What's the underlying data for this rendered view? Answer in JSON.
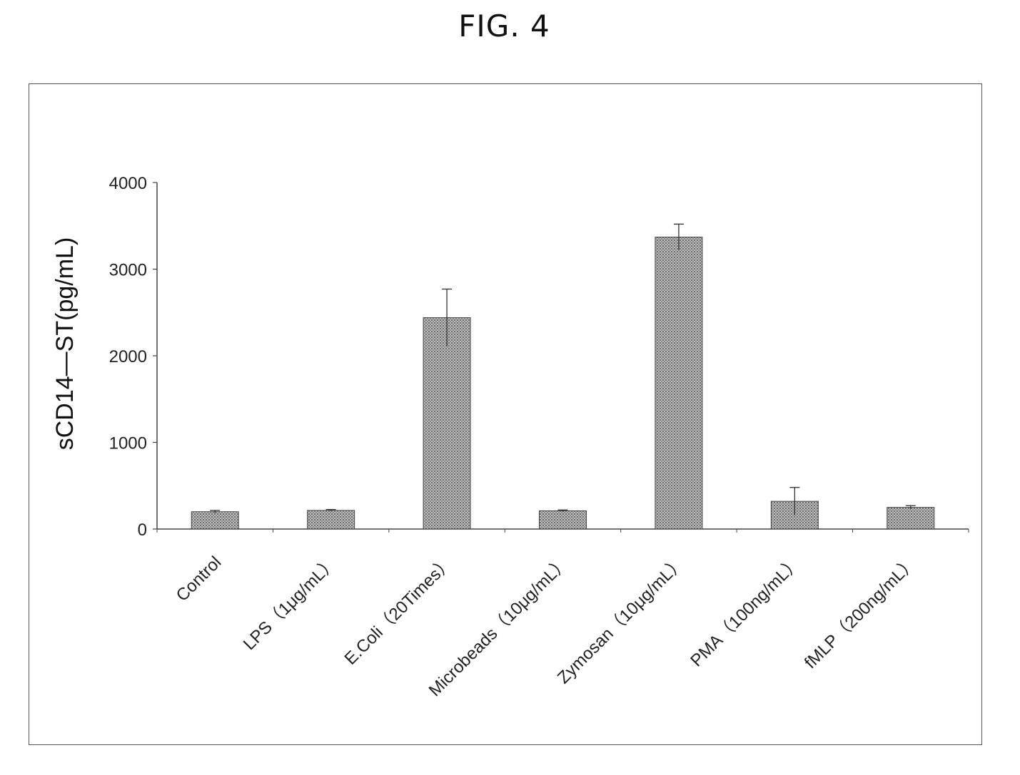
{
  "figure": {
    "title": "FIG. 4"
  },
  "chart_data": {
    "type": "bar",
    "title": "",
    "xlabel": "",
    "ylabel": "sCD14—ST(pg/mL)",
    "ylim": [
      0,
      4000
    ],
    "yticks": [
      0,
      1000,
      2000,
      3000,
      4000
    ],
    "grid": false,
    "legend": "none",
    "categories": [
      "Control",
      "LPS（1μg/mL）",
      "E.Coli（20Times）",
      "Microbeads（10μg/mL）",
      "Zymosan（10μg/mL）",
      "PMA（100ng/mL）",
      "fMLP（200ng/mL）"
    ],
    "series": [
      {
        "values": [
          200,
          215,
          2440,
          210,
          3370,
          320,
          250
        ],
        "errors": [
          15,
          10,
          330,
          10,
          150,
          160,
          20
        ]
      }
    ],
    "bar_color": "#8c8c8c"
  }
}
